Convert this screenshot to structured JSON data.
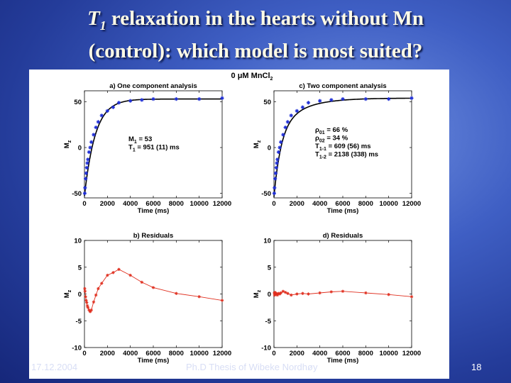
{
  "slide": {
    "title_line1_part1": "T",
    "title_line1_sub": "1",
    "title_line1_part2": " relaxation in the hearts without Mn",
    "title_line2": "(control): which model is most suited?",
    "footer_date": "17.12.2004",
    "footer_thesis": "Ph.D Thesis of Wibeke Nordhøy",
    "page_number": "18"
  },
  "figure": {
    "super_title": "0 μM MnCl",
    "super_title_sub": "2",
    "xlabel": "Time (ms)",
    "ylabel_main": "M",
    "ylabel_sub": "z"
  },
  "colors": {
    "fit_line": "#000000",
    "data_marker": "#1f2fd6",
    "residual": "#e03020",
    "axis": "#000000"
  },
  "chart_data": [
    {
      "type": "scatter",
      "title": "a) One component analysis",
      "xlabel": "Time (ms)",
      "ylabel": "Mz",
      "xlim": [
        0,
        12000
      ],
      "ylim": [
        -55,
        62
      ],
      "xticks": [
        0,
        2000,
        4000,
        6000,
        8000,
        10000,
        12000
      ],
      "yticks": [
        -50,
        0,
        50
      ],
      "series": [
        {
          "name": "data",
          "x": [
            25,
            50,
            100,
            150,
            200,
            250,
            300,
            400,
            500,
            600,
            800,
            1000,
            1200,
            1500,
            2000,
            2500,
            3000,
            4000,
            5000,
            6000,
            8000,
            10000,
            12000
          ],
          "y": [
            -50,
            -44,
            -34,
            -28,
            -22,
            -17,
            -13,
            -5,
            0,
            6,
            14,
            22,
            28,
            35,
            40,
            44,
            49,
            51,
            52,
            53,
            53,
            53,
            54
          ]
        },
        {
          "name": "fit"
        }
      ],
      "annotations": [
        {
          "name": "M",
          "sub": "1",
          "value": " = 53"
        },
        {
          "name": "T",
          "sub": "1",
          "value": " = 951 (11) ms"
        }
      ]
    },
    {
      "type": "scatter",
      "title": "c) Two component analysis",
      "xlabel": "Time (ms)",
      "ylabel": "Mz",
      "xlim": [
        0,
        12000
      ],
      "ylim": [
        -55,
        62
      ],
      "xticks": [
        0,
        2000,
        4000,
        6000,
        8000,
        10000,
        12000
      ],
      "yticks": [
        -50,
        0,
        50
      ],
      "series": [
        {
          "name": "data",
          "x": [
            25,
            50,
            100,
            150,
            200,
            250,
            300,
            400,
            500,
            600,
            800,
            1000,
            1200,
            1500,
            2000,
            2500,
            3000,
            4000,
            5000,
            6000,
            8000,
            10000,
            12000
          ],
          "y": [
            -50,
            -44,
            -34,
            -28,
            -22,
            -17,
            -13,
            -5,
            0,
            6,
            14,
            22,
            28,
            35,
            40,
            44,
            49,
            51,
            52,
            53,
            53,
            53,
            54
          ]
        },
        {
          "name": "fit"
        }
      ],
      "annotations": [
        {
          "name": "ρ",
          "sub": "01",
          "value": " = 66 %"
        },
        {
          "name": "ρ",
          "sub": "02",
          "value": " = 34 %"
        },
        {
          "name": "T",
          "sub": "1-1",
          "value": " = 609 (56) ms"
        },
        {
          "name": "T",
          "sub": "1-2",
          "value": " = 2138 (338) ms"
        }
      ]
    },
    {
      "type": "line",
      "title": "b) Residuals",
      "xlabel": "Time (ms)",
      "ylabel": "Mz",
      "xlim": [
        0,
        12000
      ],
      "ylim": [
        -10,
        10
      ],
      "xticks": [
        0,
        2000,
        4000,
        6000,
        8000,
        10000,
        12000
      ],
      "yticks": [
        -10,
        -5,
        0,
        5,
        10
      ],
      "series": [
        {
          "name": "residuals",
          "x": [
            25,
            50,
            100,
            150,
            200,
            250,
            300,
            400,
            500,
            600,
            800,
            1000,
            1200,
            1500,
            2000,
            2500,
            3000,
            4000,
            5000,
            6000,
            8000,
            10000,
            12000
          ],
          "y": [
            1.0,
            0.5,
            -0.5,
            -1.2,
            -1.6,
            -2.2,
            -2.5,
            -3.0,
            -3.3,
            -3.0,
            -1.5,
            -0.2,
            1.0,
            2.0,
            3.5,
            4.0,
            4.6,
            3.5,
            2.2,
            1.2,
            0.1,
            -0.5,
            -1.2
          ]
        }
      ]
    },
    {
      "type": "line",
      "title": "d) Residuals",
      "xlabel": "Time (ms)",
      "ylabel": "Mz",
      "xlim": [
        0,
        12000
      ],
      "ylim": [
        -10,
        10
      ],
      "xticks": [
        0,
        2000,
        4000,
        6000,
        8000,
        10000,
        12000
      ],
      "yticks": [
        -10,
        -5,
        0,
        5,
        10
      ],
      "series": [
        {
          "name": "residuals",
          "x": [
            25,
            50,
            100,
            150,
            200,
            250,
            300,
            400,
            500,
            600,
            800,
            1000,
            1200,
            1500,
            2000,
            2500,
            3000,
            4000,
            5000,
            6000,
            8000,
            10000,
            12000
          ],
          "y": [
            0.2,
            -0.2,
            0.3,
            -0.1,
            0.1,
            0.0,
            -0.2,
            0.1,
            0.0,
            0.2,
            0.5,
            0.3,
            0.1,
            -0.2,
            0.0,
            0.1,
            0.0,
            0.2,
            0.4,
            0.5,
            0.2,
            -0.1,
            -0.5
          ]
        }
      ]
    }
  ]
}
